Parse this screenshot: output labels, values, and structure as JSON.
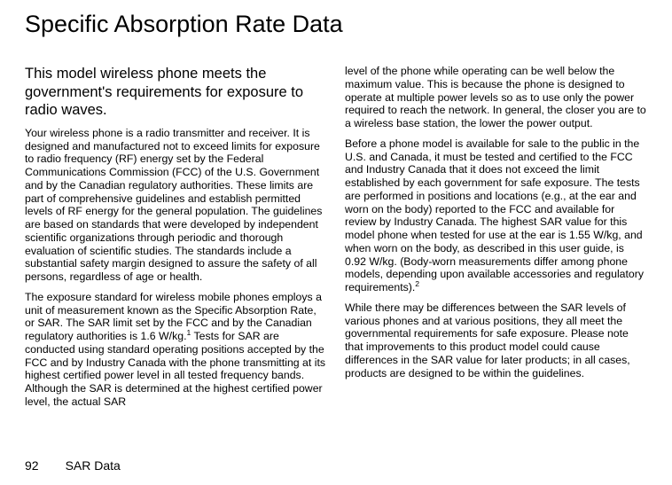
{
  "title": "Specific Absorption Rate Data",
  "subheading": "This model wireless phone meets the government's requirements for exposure to radio waves.",
  "left": {
    "p1": "Your wireless phone is a radio transmitter and receiver. It is designed and manufactured not to exceed limits for exposure to radio frequency (RF) energy set by the Federal Communications Commission (FCC) of the U.S. Government and by the Canadian regulatory authorities. These limits are part of comprehensive guidelines and establish permitted levels of RF energy for the general population. The guidelines are based on standards that were developed by independent scientific organizations through periodic and thorough evaluation of scientific studies. The standards include a substantial safety margin designed to assure the safety of all persons, regardless of age or health.",
    "p2a": "The exposure standard for wireless mobile phones employs a unit of measurement known as the Specific Absorption Rate, or SAR. The SAR limit set by the FCC and by the Canadian regulatory authorities is 1.6 W/kg.",
    "p2_foot": "1",
    "p2b": " Tests for SAR are conducted using standard operating positions accepted by the FCC and by Industry Canada with the phone transmitting at its highest certified power level in all tested frequency bands. Although the SAR is determined at the highest certified power level, the actual SAR "
  },
  "right": {
    "p1": "level of the phone while operating can be well below the maximum value. This is because the phone is designed to operate at multiple power levels so as to use only the power required to reach the network. In general, the closer you are to a wireless base station, the lower the power output.",
    "p2a": "Before a phone model is available for sale to the public in the U.S. and Canada, it must be tested and certified to the FCC and Industry Canada that it does not exceed the limit established by each government for safe exposure. The tests are performed in positions and locations (e.g., at the ear and worn on the body) reported to the FCC and available for review by Industry Canada. The highest SAR value for this model phone when tested for use at the ear is 1.55 W/kg, and when worn on the body, as described in this user guide, is 0.92 W/kg. (Body-worn measurements differ among phone models, depending upon available accessories and regulatory requirements).",
    "p2_foot": "2",
    "p3": "While there may be differences between the SAR levels of various phones and at various positions, they all meet the governmental requirements for safe exposure. Please note that improvements to this product model could cause differences in the SAR value for later products; in all cases, products are designed to be within the guidelines."
  },
  "footer": {
    "page_number": "92",
    "section": "SAR Data"
  }
}
